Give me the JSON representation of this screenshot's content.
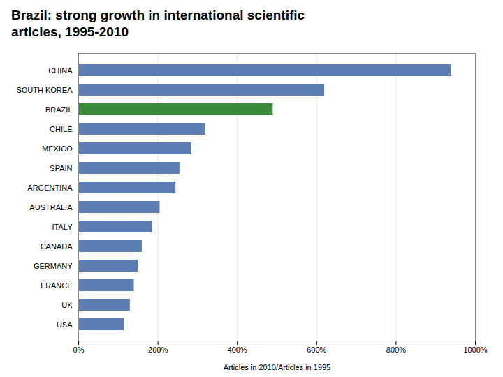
{
  "chart_data": {
    "type": "bar",
    "orientation": "horizontal",
    "title": "Brazil: strong growth in international scientific\narticles, 1995-2010",
    "xlabel": "Articles in 2010/Articles in 1995",
    "categories": [
      "USA",
      "UK",
      "FRANCE",
      "GERMANY",
      "CANADA",
      "ITALY",
      "AUSTRALIA",
      "ARGENTINA",
      "SPAIN",
      "MEXICO",
      "CHILE",
      "BRAZIL",
      "SOUTH KOREA",
      "CHINA"
    ],
    "values": [
      115,
      130,
      140,
      150,
      160,
      185,
      205,
      245,
      255,
      285,
      320,
      490,
      620,
      940
    ],
    "colors": [
      "#5b7db1",
      "#5b7db1",
      "#5b7db1",
      "#5b7db1",
      "#5b7db1",
      "#5b7db1",
      "#5b7db1",
      "#5b7db1",
      "#5b7db1",
      "#5b7db1",
      "#5b7db1",
      "#3a8a3a",
      "#5b7db1",
      "#5b7db1"
    ],
    "xlim": [
      0,
      1000
    ],
    "xticks": [
      {
        "value": 0,
        "label": "0%"
      },
      {
        "value": 200,
        "label": "200%"
      },
      {
        "value": 400,
        "label": "400%"
      },
      {
        "value": 600,
        "label": "600%"
      },
      {
        "value": 800,
        "label": "800%"
      },
      {
        "value": 1000,
        "label": "1000%"
      }
    ],
    "grid": true
  }
}
